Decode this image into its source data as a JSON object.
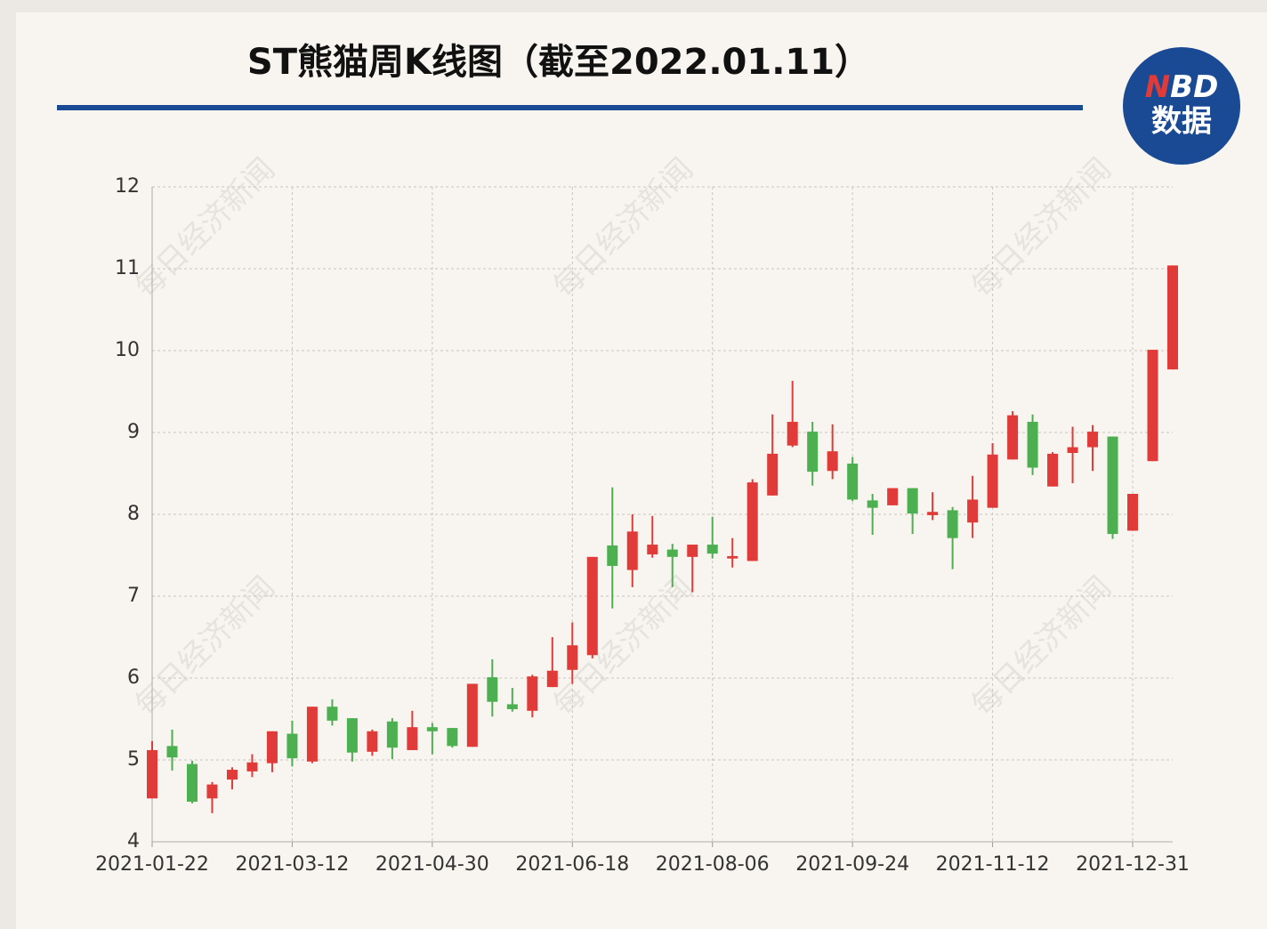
{
  "chart_data": {
    "type": "candlestick",
    "title": "ST熊猫周K线图（截至2022.01.11）",
    "categories": [
      "2021-01-22",
      null,
      null,
      null,
      null,
      null,
      null,
      "2021-03-12",
      null,
      null,
      null,
      null,
      null,
      null,
      "2021-04-30",
      null,
      null,
      null,
      null,
      null,
      null,
      "2021-06-18",
      null,
      null,
      null,
      null,
      null,
      null,
      "2021-08-06",
      null,
      null,
      null,
      null,
      null,
      null,
      "2021-09-24",
      null,
      null,
      null,
      null,
      null,
      null,
      "2021-11-12",
      null,
      null,
      null,
      null,
      null,
      null,
      "2021-12-31",
      null,
      null
    ],
    "open": [
      4.53,
      5.17,
      4.95,
      4.53,
      4.76,
      4.86,
      4.96,
      5.32,
      4.98,
      5.65,
      5.51,
      5.1,
      5.47,
      5.12,
      5.4,
      5.39,
      5.16,
      6.01,
      5.68,
      5.6,
      5.89,
      6.1,
      6.28,
      7.62,
      7.32,
      7.51,
      7.57,
      7.48,
      7.63,
      7.46,
      7.43,
      8.23,
      8.84,
      9.01,
      8.53,
      8.62,
      8.17,
      8.11,
      8.32,
      7.99,
      8.05,
      7.9,
      8.08,
      8.67,
      9.13,
      8.34,
      8.75,
      8.82,
      8.95,
      7.8,
      8.65,
      9.77
    ],
    "close": [
      5.12,
      5.03,
      4.49,
      4.7,
      4.88,
      4.97,
      5.35,
      5.02,
      5.65,
      5.48,
      5.09,
      5.35,
      5.15,
      5.4,
      5.35,
      5.17,
      5.93,
      5.71,
      5.62,
      6.02,
      6.09,
      6.4,
      7.48,
      7.37,
      7.79,
      7.63,
      7.48,
      7.63,
      7.52,
      7.49,
      8.39,
      8.74,
      9.13,
      8.52,
      8.77,
      8.18,
      8.08,
      8.32,
      8.01,
      8.03,
      7.71,
      8.18,
      8.73,
      9.21,
      8.57,
      8.74,
      8.82,
      9.01,
      7.76,
      8.25,
      10.01,
      11.04
    ],
    "high": [
      5.23,
      5.37,
      4.99,
      4.73,
      4.91,
      5.07,
      5.35,
      5.48,
      5.65,
      5.74,
      5.51,
      5.37,
      5.51,
      5.6,
      5.45,
      5.39,
      5.93,
      6.23,
      5.88,
      6.04,
      6.5,
      6.68,
      7.48,
      8.33,
      8.0,
      7.98,
      7.64,
      7.63,
      7.97,
      7.71,
      8.43,
      9.22,
      9.63,
      9.13,
      9.1,
      8.7,
      8.25,
      8.32,
      8.32,
      8.27,
      8.09,
      8.47,
      8.87,
      9.26,
      9.22,
      8.76,
      9.07,
      9.09,
      8.95,
      8.25,
      10.01,
      11.04
    ],
    "low": [
      4.53,
      4.87,
      4.47,
      4.35,
      4.64,
      4.79,
      4.85,
      4.92,
      4.96,
      5.42,
      4.98,
      5.05,
      5.01,
      5.12,
      5.07,
      5.15,
      5.16,
      5.53,
      5.59,
      5.52,
      5.89,
      5.93,
      6.24,
      6.85,
      7.11,
      7.47,
      7.11,
      7.05,
      7.46,
      7.35,
      7.43,
      8.23,
      8.82,
      8.35,
      8.43,
      8.16,
      7.75,
      8.11,
      7.76,
      7.93,
      7.33,
      7.71,
      8.08,
      8.67,
      8.48,
      8.34,
      8.38,
      8.53,
      7.7,
      7.8,
      8.65,
      9.77
    ],
    "up_color": "#e03b38",
    "down_color": "#4caf50",
    "ylim": [
      4,
      12
    ],
    "yticks": [
      4,
      5,
      6,
      7,
      8,
      9,
      10,
      11,
      12
    ],
    "grid": true
  },
  "logo": {
    "mark": [
      "N",
      "BD"
    ],
    "label": "数据"
  },
  "watermark": "每日经济新闻"
}
